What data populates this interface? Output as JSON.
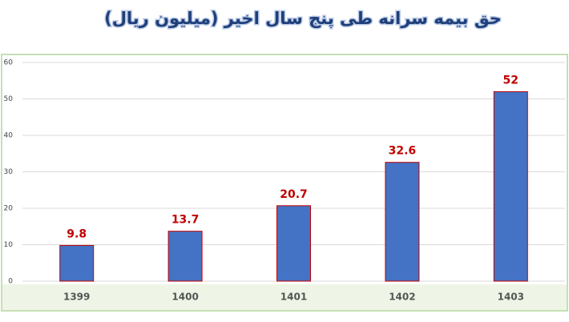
{
  "chart_data": {
    "type": "bar",
    "title": "حق بیمه سرانه طی پنج سال اخیر (میلیون ریال)",
    "categories": [
      "1399",
      "1400",
      "1401",
      "1402",
      "1403"
    ],
    "values": [
      9.8,
      13.7,
      20.7,
      32.6,
      52
    ],
    "color": "#4472c4",
    "edgecolor": "#c00000",
    "label_color": "#c00000",
    "ylim": [
      0,
      60
    ],
    "yticks": [
      0,
      10,
      20,
      30,
      40,
      50,
      60
    ],
    "grid": true
  }
}
